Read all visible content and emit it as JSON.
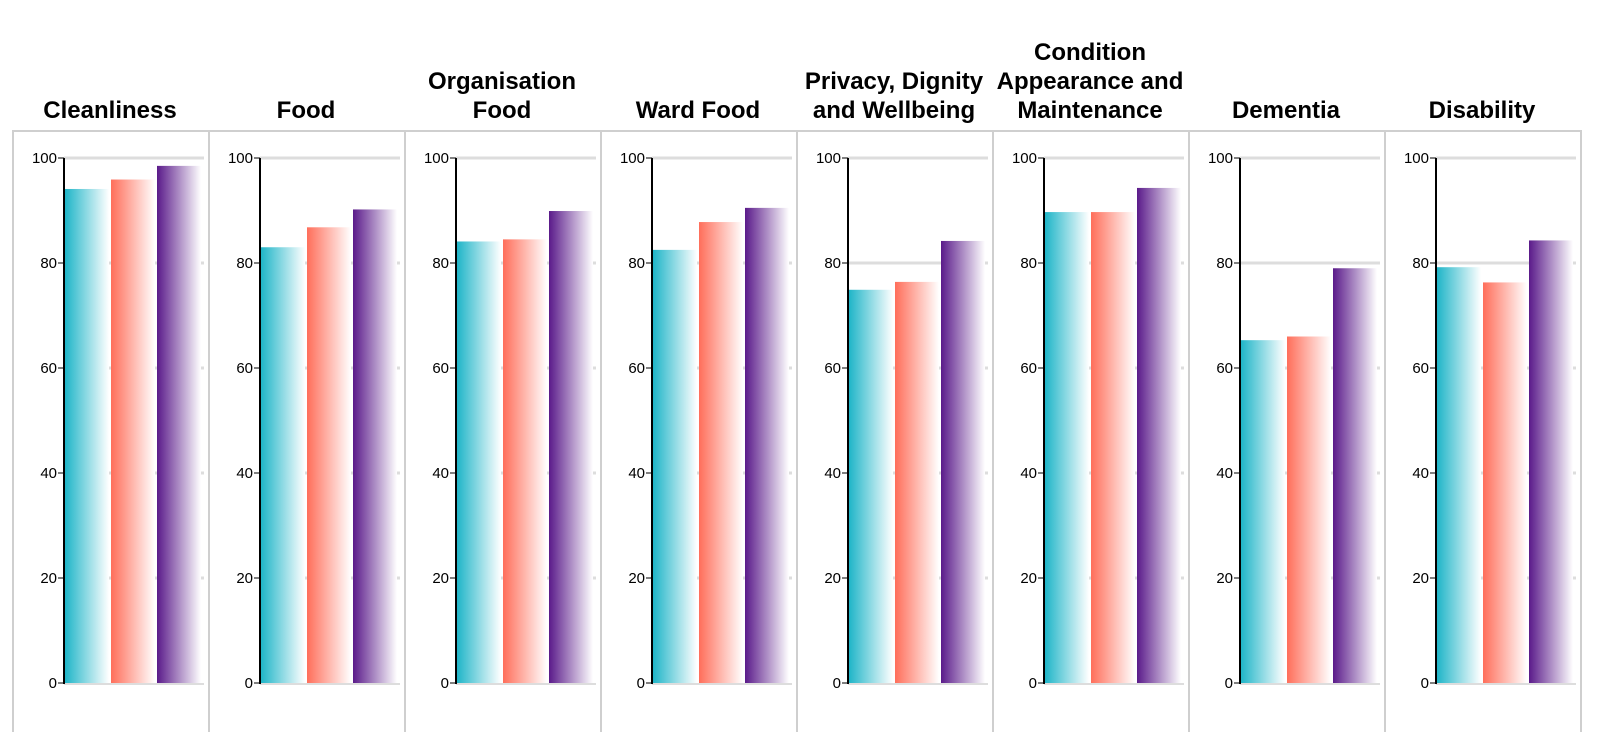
{
  "chart_data": {
    "type": "bar",
    "ylim": [
      0,
      100
    ],
    "yticks": [
      0,
      20,
      40,
      60,
      80,
      100
    ],
    "grid": true,
    "series_colors": [
      "#1fb5c8",
      "#ff6e5a",
      "#5a1a8a"
    ],
    "panels": [
      {
        "title": "Cleanliness",
        "values": [
          94.1,
          95.9,
          98.5
        ]
      },
      {
        "title": "Food",
        "values": [
          83.0,
          86.8,
          90.2
        ]
      },
      {
        "title": "Organisation Food",
        "values": [
          84.1,
          84.5,
          89.9
        ]
      },
      {
        "title": "Ward Food",
        "values": [
          82.5,
          87.8,
          90.5
        ]
      },
      {
        "title": "Privacy, Dignity and Wellbeing",
        "values": [
          74.9,
          76.4,
          84.2
        ]
      },
      {
        "title": "Condition Appearance and Maintenance",
        "values": [
          89.7,
          89.7,
          94.3
        ]
      },
      {
        "title": "Dementia",
        "values": [
          65.3,
          66.0,
          79.0
        ]
      },
      {
        "title": "Disability",
        "values": [
          79.2,
          76.3,
          84.3
        ]
      }
    ]
  }
}
